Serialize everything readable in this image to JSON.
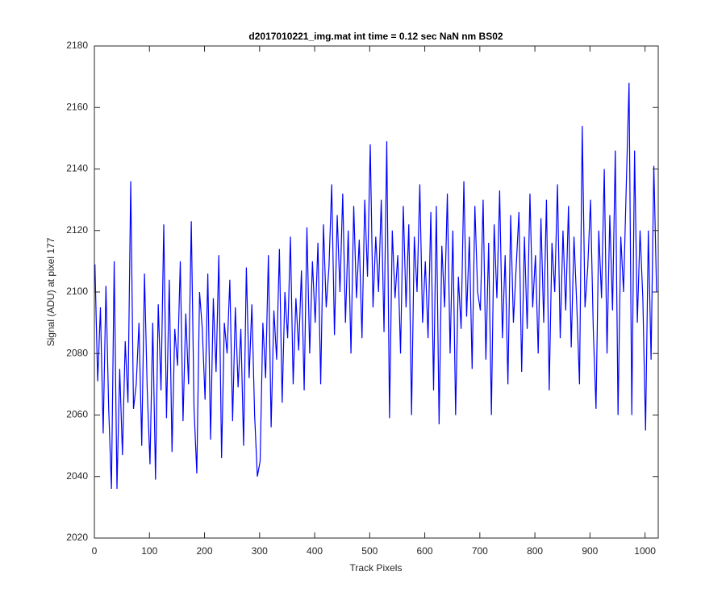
{
  "chart_data": {
    "type": "line",
    "title": "d2017010221_img.mat int time = 0.12 sec  NaN nm BS02",
    "x_label": "Track Pixels",
    "y_label": "Signal (ADU) at pixel 177",
    "color": "#0000ff",
    "xlim": [
      0,
      1024
    ],
    "ylim": [
      2020,
      2180
    ],
    "xticks": [
      0,
      100,
      200,
      300,
      400,
      500,
      600,
      700,
      800,
      900,
      1000
    ],
    "yticks": [
      2020,
      2040,
      2060,
      2080,
      2100,
      2120,
      2140,
      2160,
      2180
    ],
    "x": [
      1,
      6,
      11,
      16,
      21,
      26,
      31,
      36,
      41,
      46,
      51,
      56,
      61,
      66,
      71,
      76,
      81,
      86,
      91,
      96,
      101,
      106,
      111,
      116,
      121,
      126,
      131,
      136,
      141,
      146,
      151,
      156,
      161,
      166,
      171,
      176,
      181,
      186,
      191,
      196,
      201,
      206,
      211,
      216,
      221,
      226,
      231,
      236,
      241,
      246,
      251,
      256,
      261,
      266,
      271,
      276,
      281,
      286,
      291,
      296,
      301,
      306,
      311,
      316,
      321,
      326,
      331,
      336,
      341,
      346,
      351,
      356,
      361,
      366,
      371,
      376,
      381,
      386,
      391,
      396,
      401,
      406,
      411,
      416,
      421,
      426,
      431,
      436,
      441,
      446,
      451,
      456,
      461,
      466,
      471,
      476,
      481,
      486,
      491,
      496,
      501,
      506,
      511,
      516,
      521,
      526,
      531,
      536,
      541,
      546,
      551,
      556,
      561,
      566,
      571,
      576,
      581,
      586,
      591,
      596,
      601,
      606,
      611,
      616,
      621,
      626,
      631,
      636,
      641,
      646,
      651,
      656,
      661,
      666,
      671,
      676,
      681,
      686,
      691,
      696,
      701,
      706,
      711,
      716,
      721,
      726,
      731,
      736,
      741,
      746,
      751,
      756,
      761,
      766,
      771,
      776,
      781,
      786,
      791,
      796,
      801,
      806,
      811,
      816,
      821,
      826,
      831,
      836,
      841,
      846,
      851,
      856,
      861,
      866,
      871,
      876,
      881,
      886,
      891,
      896,
      901,
      906,
      911,
      916,
      921,
      926,
      931,
      936,
      941,
      946,
      951,
      956,
      961,
      966,
      971,
      976,
      981,
      986,
      991,
      996,
      1001,
      1006,
      1011,
      1016,
      1021
    ],
    "values": [
      2109,
      2071,
      2095,
      2054,
      2102,
      2062,
      2036,
      2110,
      2036,
      2075,
      2047,
      2084,
      2064,
      2136,
      2062,
      2070,
      2090,
      2050,
      2106,
      2068,
      2044,
      2090,
      2039,
      2096,
      2068,
      2122,
      2059,
      2104,
      2048,
      2088,
      2076,
      2110,
      2058,
      2093,
      2070,
      2123,
      2062,
      2041,
      2100,
      2088,
      2065,
      2106,
      2052,
      2098,
      2074,
      2112,
      2046,
      2090,
      2080,
      2104,
      2058,
      2095,
      2069,
      2088,
      2050,
      2108,
      2072,
      2096,
      2060,
      2040,
      2045,
      2090,
      2072,
      2112,
      2056,
      2094,
      2078,
      2114,
      2064,
      2100,
      2085,
      2118,
      2070,
      2098,
      2081,
      2107,
      2068,
      2121,
      2080,
      2110,
      2090,
      2116,
      2070,
      2122,
      2095,
      2108,
      2135,
      2086,
      2125,
      2100,
      2132,
      2090,
      2120,
      2080,
      2128,
      2098,
      2117,
      2085,
      2130,
      2105,
      2148,
      2095,
      2118,
      2100,
      2130,
      2087,
      2149,
      2059,
      2120,
      2098,
      2112,
      2080,
      2128,
      2095,
      2122,
      2060,
      2118,
      2100,
      2135,
      2090,
      2110,
      2085,
      2126,
      2068,
      2128,
      2057,
      2115,
      2095,
      2132,
      2080,
      2120,
      2060,
      2105,
      2088,
      2136,
      2092,
      2118,
      2075,
      2128,
      2100,
      2094,
      2130,
      2078,
      2116,
      2060,
      2122,
      2098,
      2133,
      2085,
      2112,
      2070,
      2125,
      2090,
      2108,
      2126,
      2074,
      2118,
      2088,
      2132,
      2095,
      2112,
      2080,
      2124,
      2090,
      2130,
      2068,
      2116,
      2100,
      2135,
      2085,
      2120,
      2094,
      2128,
      2082,
      2118,
      2096,
      2070,
      2154,
      2095,
      2108,
      2130,
      2088,
      2062,
      2120,
      2098,
      2140,
      2080,
      2125,
      2094,
      2146,
      2060,
      2118,
      2100,
      2135,
      2168,
      2060,
      2146,
      2090,
      2120,
      2098,
      2055,
      2120,
      2078,
      2141,
      2100
    ]
  }
}
